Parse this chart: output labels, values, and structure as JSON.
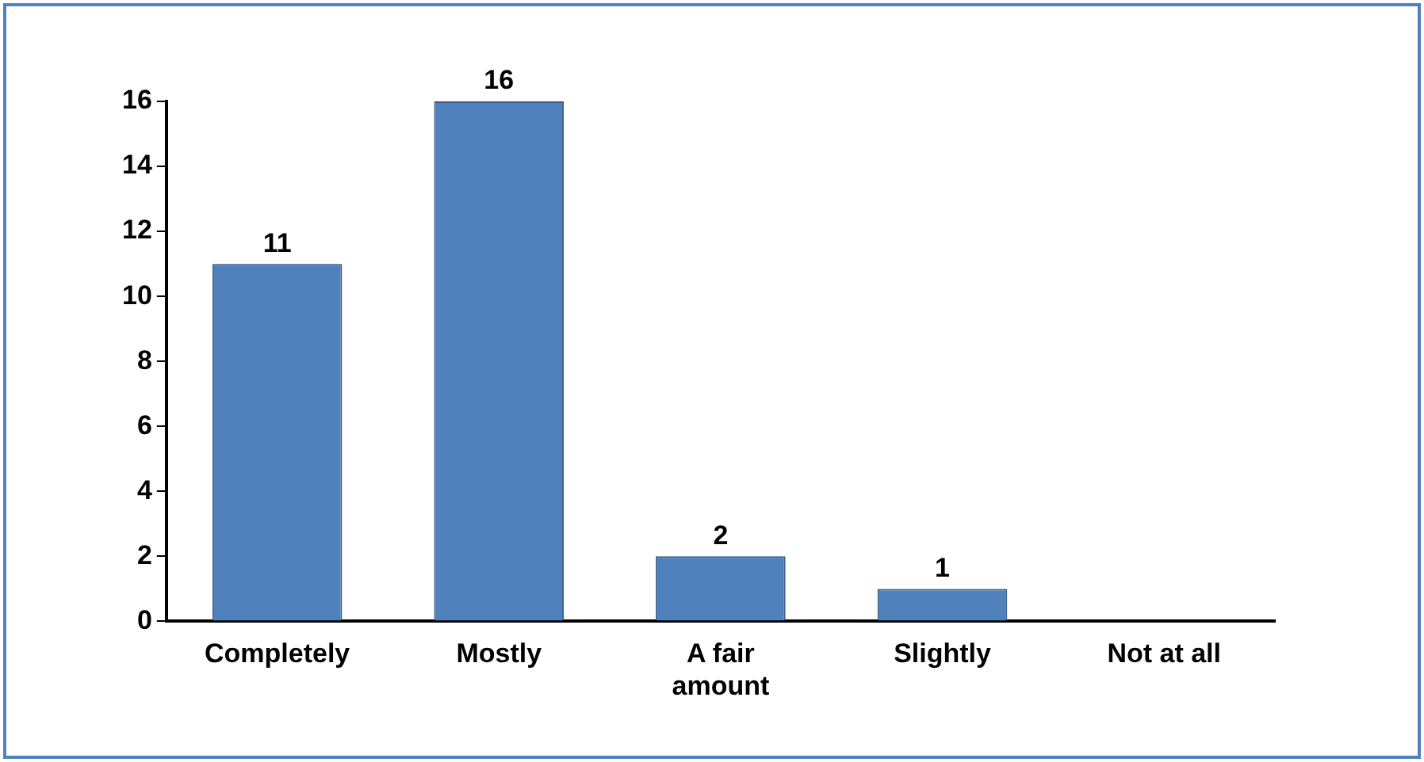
{
  "chart_data": {
    "type": "bar",
    "categories": [
      "Completely",
      "Mostly",
      "A fair amount",
      "Slightly",
      "Not at all"
    ],
    "values": [
      11,
      16,
      2,
      1,
      0
    ],
    "color": "#4f81bd",
    "value_labels": [
      "11",
      "16",
      "2",
      "1",
      null
    ],
    "ylim": [
      0,
      16
    ],
    "yticks": [
      0,
      2,
      4,
      6,
      8,
      10,
      12,
      14,
      16
    ],
    "grid": false,
    "legend": false
  }
}
